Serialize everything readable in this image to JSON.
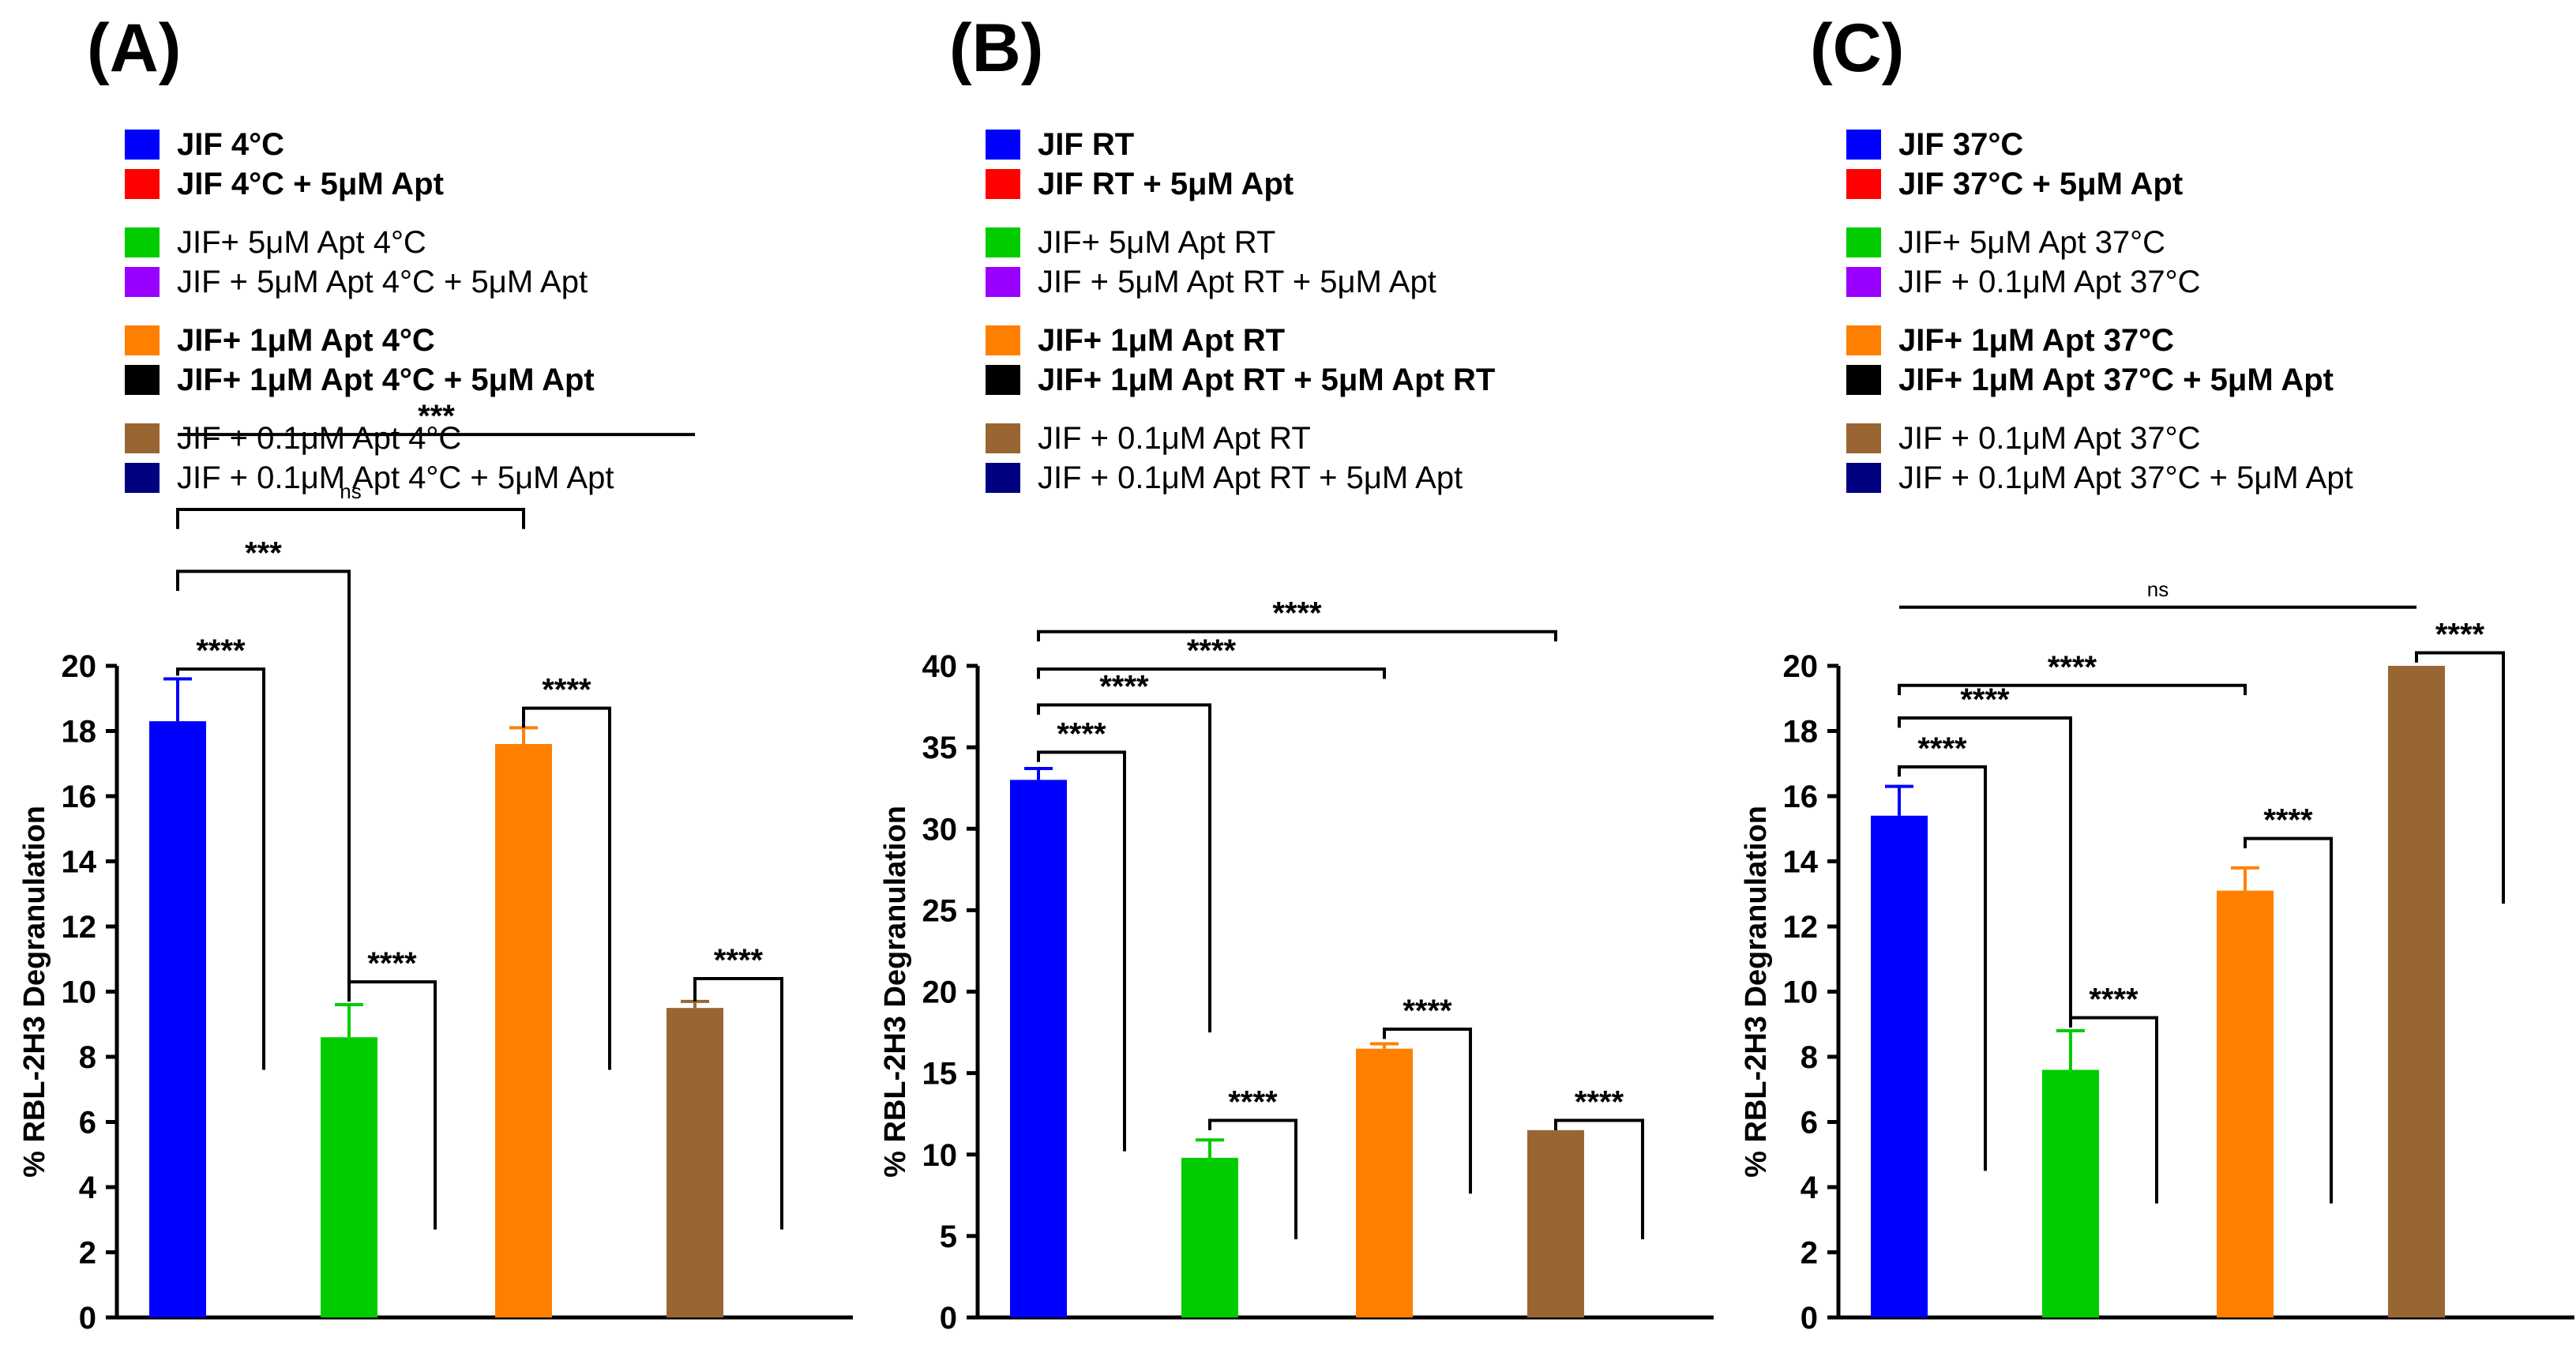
{
  "chart_data": [
    {
      "type": "bar",
      "panel_label": "(A)",
      "ylabel": "% RBL-2H3 Degranulation",
      "ylim": [
        0,
        20
      ],
      "yticks": [
        "0",
        "2",
        "4",
        "6",
        "8",
        "10",
        "12",
        "14",
        "16",
        "18",
        "20"
      ],
      "legend": [
        {
          "label": "JIF 4°C",
          "color": "#0000ff",
          "bold": true
        },
        {
          "label": "JIF 4°C + 5μM Apt",
          "color": "#ff0000",
          "bold": true
        },
        {
          "label": "JIF+ 5μM Apt 4°C",
          "color": "#00cc00",
          "bold": false
        },
        {
          "label": "JIF + 5μM Apt 4°C + 5μM Apt",
          "color": "#9900ff",
          "bold": false
        },
        {
          "label": "JIF+ 1μM Apt 4°C",
          "color": "#ff8000",
          "bold": true
        },
        {
          "label": "JIF+ 1μM Apt 4°C + 5μM Apt",
          "color": "#000000",
          "bold": true
        },
        {
          "label": "JIF + 0.1μM Apt 4°C",
          "color": "#996633",
          "bold": false
        },
        {
          "label": "JIF + 0.1μM Apt 4°C + 5μM Apt",
          "color": "#000080",
          "bold": false
        }
      ],
      "bars": [
        {
          "label": "JIF 4°C",
          "value": 18.3,
          "error": 1.3,
          "color": "#0000ff"
        },
        {
          "label": "JIF 4°C + 5μM Apt",
          "value": 0,
          "error": 0,
          "color": "#ff0000"
        },
        {
          "label": "JIF+ 5μM Apt 4°C",
          "value": 8.6,
          "error": 1.0,
          "color": "#00cc00"
        },
        {
          "label": "JIF + 5μM Apt 4°C + 5μM Apt",
          "value": 0,
          "error": 0,
          "color": "#9900ff"
        },
        {
          "label": "JIF+ 1μM Apt 4°C",
          "value": 17.6,
          "error": 0.5,
          "color": "#ff8000"
        },
        {
          "label": "JIF+ 1μM Apt 4°C + 5μM Apt",
          "value": 0,
          "error": 0,
          "color": "#000000"
        },
        {
          "label": "JIF + 0.1μM Apt 4°C",
          "value": 9.5,
          "error": 0.2,
          "color": "#996633"
        },
        {
          "label": "JIF + 0.1μM Apt 4°C + 5μM Apt",
          "value": 0,
          "error": 0,
          "color": "#000080"
        }
      ],
      "brackets": [
        {
          "from": 0,
          "to": 1,
          "y": 19.9,
          "left_end": 19.7,
          "right_end": 7.6,
          "text": "****"
        },
        {
          "from": 2,
          "to": 3,
          "y": 10.3,
          "left_end": 9.7,
          "right_end": 2.7,
          "text": "****"
        },
        {
          "from": 4,
          "to": 5,
          "y": 18.7,
          "left_end": 18.1,
          "right_end": 7.6,
          "text": "****"
        },
        {
          "from": 6,
          "to": 7,
          "y": 10.4,
          "left_end": 9.7,
          "right_end": 2.7,
          "text": "****"
        },
        {
          "from": 0,
          "to": 2,
          "y": 22.9,
          "left_end": 22.3,
          "right_end": 9.7,
          "text": "***"
        },
        {
          "from": 0,
          "to": 4,
          "y": 24.8,
          "left_end": 24.2,
          "right_end": 24.2,
          "text": "ns"
        },
        {
          "from": 0,
          "to": 6,
          "y": 27.1,
          "left_end": 27.1,
          "right_end": 27.1,
          "text": "***"
        }
      ]
    },
    {
      "type": "bar",
      "panel_label": "(B)",
      "ylabel": "% RBL-2H3 Degranulation",
      "ylim": [
        0,
        40
      ],
      "yticks": [
        "0",
        "5",
        "10",
        "15",
        "20",
        "25",
        "30",
        "35",
        "40"
      ],
      "legend": [
        {
          "label": "JIF RT",
          "color": "#0000ff",
          "bold": true
        },
        {
          "label": "JIF RT + 5μM Apt",
          "color": "#ff0000",
          "bold": true
        },
        {
          "label": "JIF+ 5μM Apt RT",
          "color": "#00cc00",
          "bold": false
        },
        {
          "label": "JIF + 5μM Apt RT + 5μM Apt",
          "color": "#9900ff",
          "bold": false
        },
        {
          "label": "JIF+ 1μM Apt RT",
          "color": "#ff8000",
          "bold": true
        },
        {
          "label": "JIF+ 1μM Apt RT + 5μM Apt RT",
          "color": "#000000",
          "bold": true
        },
        {
          "label": "JIF + 0.1μM Apt RT",
          "color": "#996633",
          "bold": false
        },
        {
          "label": "JIF + 0.1μM Apt RT + 5μM Apt",
          "color": "#000080",
          "bold": false
        }
      ],
      "bars": [
        {
          "label": "JIF RT",
          "value": 33.0,
          "error": 0.7,
          "color": "#0000ff"
        },
        {
          "label": "JIF RT + 5μM Apt",
          "value": 0,
          "error": 0,
          "color": "#ff0000"
        },
        {
          "label": "JIF+ 5μM Apt RT",
          "value": 9.8,
          "error": 1.1,
          "color": "#00cc00"
        },
        {
          "label": "JIF + 5μM Apt RT + 5μM Apt",
          "value": 0,
          "error": 0,
          "color": "#9900ff"
        },
        {
          "label": "JIF+ 1μM Apt RT",
          "value": 16.5,
          "error": 0.3,
          "color": "#ff8000"
        },
        {
          "label": "JIF+ 1μM Apt RT + 5μM Apt RT",
          "value": 0,
          "error": 0,
          "color": "#000000"
        },
        {
          "label": "JIF + 0.1μM Apt RT",
          "value": 11.5,
          "error": 0,
          "color": "#996633"
        },
        {
          "label": "JIF + 0.1μM Apt RT + 5μM Apt",
          "value": 0,
          "error": 0,
          "color": "#000080"
        }
      ],
      "brackets": [
        {
          "from": 0,
          "to": 1,
          "y": 34.7,
          "left_end": 34.1,
          "right_end": 10.2,
          "text": "****"
        },
        {
          "from": 2,
          "to": 3,
          "y": 12.1,
          "left_end": 11.5,
          "right_end": 4.8,
          "text": "****"
        },
        {
          "from": 4,
          "to": 5,
          "y": 17.7,
          "left_end": 17.1,
          "right_end": 7.6,
          "text": "****"
        },
        {
          "from": 6,
          "to": 7,
          "y": 12.1,
          "left_end": 11.5,
          "right_end": 4.8,
          "text": "****"
        },
        {
          "from": 0,
          "to": 2,
          "y": 37.6,
          "left_end": 37.0,
          "right_end": 17.5,
          "text": "****"
        },
        {
          "from": 0,
          "to": 4,
          "y": 39.8,
          "left_end": 39.2,
          "right_end": 39.2,
          "text": "****"
        },
        {
          "from": 0,
          "to": 6,
          "y": 42.1,
          "left_end": 41.5,
          "right_end": 41.5,
          "text": "****"
        }
      ]
    },
    {
      "type": "bar",
      "panel_label": "(C)",
      "ylabel": "% RBL-2H3 Degranulation",
      "ylim": [
        0,
        20
      ],
      "yticks": [
        "0",
        "2",
        "4",
        "6",
        "8",
        "10",
        "12",
        "14",
        "16",
        "18",
        "20"
      ],
      "legend": [
        {
          "label": "JIF 37°C",
          "color": "#0000ff",
          "bold": true
        },
        {
          "label": "JIF 37°C + 5μM Apt",
          "color": "#ff0000",
          "bold": true
        },
        {
          "label": "JIF+ 5μM Apt 37°C",
          "color": "#00cc00",
          "bold": false
        },
        {
          "label": "JIF + 0.1μM Apt 37°C",
          "color": "#9900ff",
          "bold": false
        },
        {
          "label": "JIF+ 1μM Apt 37°C",
          "color": "#ff8000",
          "bold": true
        },
        {
          "label": "JIF+ 1μM Apt 37°C + 5μM Apt",
          "color": "#000000",
          "bold": true
        },
        {
          "label": "JIF + 0.1μM Apt 37°C",
          "color": "#996633",
          "bold": false
        },
        {
          "label": "JIF + 0.1μM Apt 37°C + 5μM Apt",
          "color": "#000080",
          "bold": false
        }
      ],
      "bars": [
        {
          "label": "JIF 37°C",
          "value": 15.4,
          "error": 0.9,
          "color": "#0000ff"
        },
        {
          "label": "JIF 37°C + 5μM Apt",
          "value": 0,
          "error": 0,
          "color": "#ff0000"
        },
        {
          "label": "JIF+ 5μM Apt 37°C",
          "value": 7.6,
          "error": 1.2,
          "color": "#00cc00"
        },
        {
          "label": "JIF + 0.1μM Apt 37°C",
          "value": 0,
          "error": 0,
          "color": "#9900ff"
        },
        {
          "label": "JIF+ 1μM Apt 37°C",
          "value": 13.1,
          "error": 0.7,
          "color": "#ff8000"
        },
        {
          "label": "JIF+ 1μM Apt 37°C + 5μM Apt",
          "value": 0,
          "error": 0,
          "color": "#000000"
        },
        {
          "label": "JIF + 0.1μM Apt 37°C",
          "value": 20.0,
          "error": 0,
          "color": "#996633"
        },
        {
          "label": "JIF + 0.1μM Apt 37°C + 5μM Apt",
          "value": 0,
          "error": 0,
          "color": "#000080"
        }
      ],
      "brackets": [
        {
          "from": 0,
          "to": 1,
          "y": 16.9,
          "left_end": 16.6,
          "right_end": 4.5,
          "text": "****"
        },
        {
          "from": 2,
          "to": 3,
          "y": 9.2,
          "left_end": 8.9,
          "right_end": 3.5,
          "text": "****"
        },
        {
          "from": 4,
          "to": 5,
          "y": 14.7,
          "left_end": 14.4,
          "right_end": 3.5,
          "text": "****"
        },
        {
          "from": 6,
          "to": 7,
          "y": 20.4,
          "left_end": 20.1,
          "right_end": 12.7,
          "text": "****"
        },
        {
          "from": 0,
          "to": 2,
          "y": 18.4,
          "left_end": 18.1,
          "right_end": 9.2,
          "text": "****"
        },
        {
          "from": 0,
          "to": 4,
          "y": 19.4,
          "left_end": 19.1,
          "right_end": 19.1,
          "text": "****"
        },
        {
          "from": 0,
          "to": 6,
          "y": 21.8,
          "left_end": 21.8,
          "right_end": 21.8,
          "text": "ns"
        }
      ]
    }
  ]
}
